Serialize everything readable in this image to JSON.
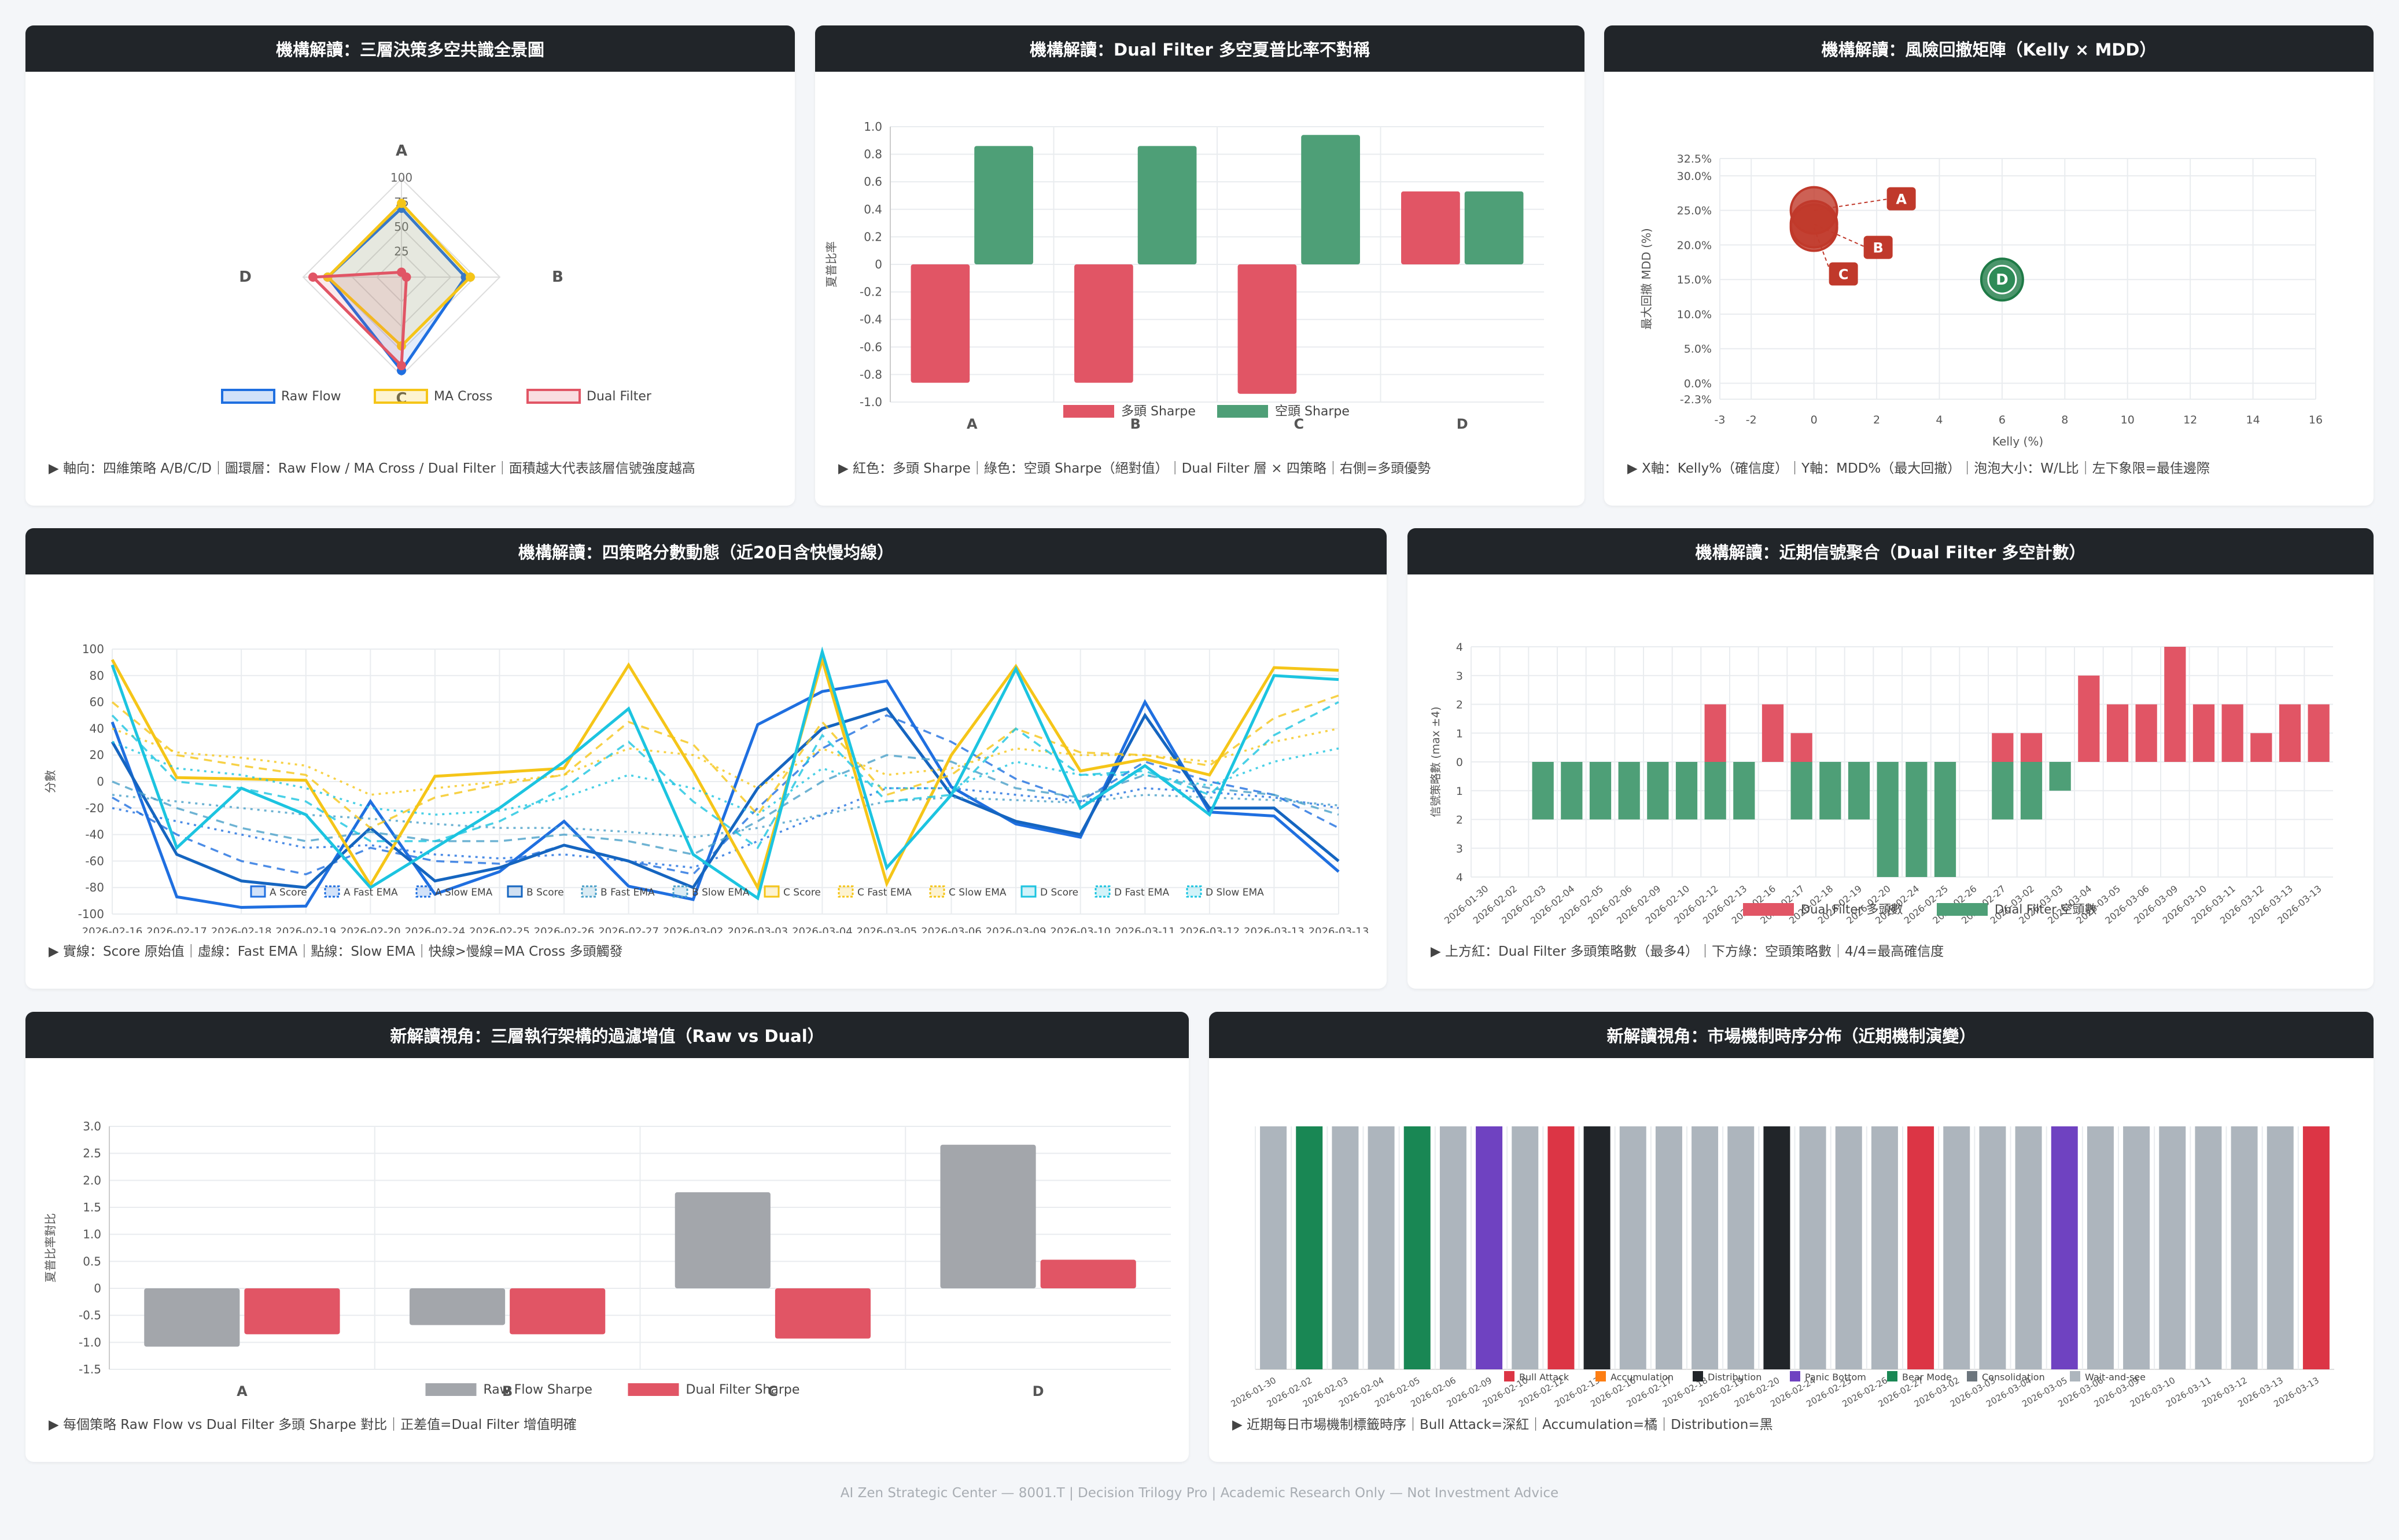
{
  "footer": "AI Zen Strategic Center — 8001.T | Decision Trilogy Pro | Academic Research Only — Not Investment Advice",
  "colors": {
    "red": "#e15565",
    "green": "#4e9f77",
    "gray": "#a3a6ab",
    "blue": "#1f6fe0",
    "yellow": "#f5c518",
    "cyan": "#1cc4e0",
    "dark": "#212529"
  },
  "panels": {
    "radar": {
      "title": "機構解讀：三層決策多空共識全景圖",
      "caption": "▶ 軸向：四維策略 A/B/C/D｜圖環層：Raw Flow / MA Cross / Dual Filter｜面積越大代表該層信號強度越高"
    },
    "sharpe": {
      "title": "機構解讀：Dual Filter 多空夏普比率不對稱",
      "caption": "▶ 紅色：多頭 Sharpe｜綠色：空頭 Sharpe（絕對值）｜Dual Filter 層 × 四策略｜右側=多頭優勢"
    },
    "bubble": {
      "title": "機構解讀：風險回撤矩陣（Kelly × MDD）",
      "caption": "▶ X軸：Kelly%（確信度）｜Y軸：MDD%（最大回撤）｜泡泡大小：W/L比｜左下象限=最佳邊際"
    },
    "lines": {
      "title": "機構解讀：四策略分數動態（近20日含快慢均線）",
      "caption": "▶ 實線：Score 原始值｜虛線：Fast EMA｜點線：Slow EMA｜快線>慢線=MA Cross 多頭觸發"
    },
    "signals": {
      "title": "機構解讀：近期信號聚合（Dual Filter 多空計數）",
      "caption": "▶ 上方紅：Dual Filter 多頭策略數（最多4）｜下方綠：空頭策略數｜4/4=最高確信度"
    },
    "raw": {
      "title": "新解讀視角：三層執行架構的過濾增值（Raw vs Dual）",
      "caption": "▶ 每個策略 Raw Flow vs Dual Filter 多頭 Sharpe 對比｜正差值=Dual Filter 增值明確"
    },
    "regime": {
      "title": "新解讀視角：市場機制時序分佈（近期機制演變）",
      "caption": "▶ 近期每日市場機制標籤時序｜Bull Attack=深紅｜Accumulation=橘｜Distribution=黑"
    }
  },
  "chart_data": [
    {
      "type": "radar",
      "axes": [
        "A",
        "B",
        "C",
        "D"
      ],
      "ticks": [
        "25",
        "50",
        "75",
        "100"
      ],
      "series": [
        {
          "name": "Raw Flow",
          "color": "#1f6fe0",
          "values": [
            70,
            65,
            95,
            75
          ]
        },
        {
          "name": "MA Cross",
          "color": "#f5c518",
          "values": [
            75,
            70,
            70,
            75
          ]
        },
        {
          "name": "Dual Filter",
          "color": "#e15565",
          "values": [
            5,
            5,
            90,
            90
          ]
        }
      ]
    },
    {
      "type": "bar",
      "categories": [
        "A",
        "B",
        "C",
        "D"
      ],
      "ylabel": "夏普比率",
      "ylim": [
        -1.0,
        1.0
      ],
      "yticks": [
        "1.0",
        "0.8",
        "0.6",
        "0.4",
        "0.2",
        "0",
        "-0.2",
        "-0.4",
        "-0.6",
        "-0.8",
        "-1.0"
      ],
      "series": [
        {
          "name": "多頭 Sharpe",
          "color": "#e15565",
          "values": [
            -0.86,
            -0.86,
            -0.94,
            0.53
          ]
        },
        {
          "name": "空頭 Sharpe",
          "color": "#4e9f77",
          "values": [
            0.86,
            0.86,
            0.94,
            0.53
          ]
        }
      ]
    },
    {
      "type": "scatter",
      "xlabel": "Kelly (%)",
      "ylabel": "最大回撤 MDD (%)",
      "xlim": [
        -3,
        16
      ],
      "ylim": [
        -2.3,
        32.5
      ],
      "xticks": [
        "-3",
        "-2",
        "0",
        "2",
        "4",
        "6",
        "8",
        "10",
        "12",
        "14",
        "16"
      ],
      "yticks": [
        "32.5%",
        "30.0%",
        "25.0%",
        "20.0%",
        "15.0%",
        "10.0%",
        "5.0%",
        "0.0%",
        "-2.3%"
      ],
      "points": [
        {
          "label": "A",
          "x": 0,
          "y": 25,
          "color": "#c0392b"
        },
        {
          "label": "B",
          "x": 0,
          "y": 23,
          "color": "#c0392b"
        },
        {
          "label": "C",
          "x": 0,
          "y": 22.5,
          "color": "#c0392b"
        },
        {
          "label": "D",
          "x": 6,
          "y": 15,
          "color": "#1e7a46"
        }
      ]
    },
    {
      "type": "line",
      "ylabel": "分數",
      "ylim": [
        -100,
        100
      ],
      "yticks": [
        "100",
        "80",
        "60",
        "40",
        "20",
        "0",
        "-20",
        "-40",
        "-60",
        "-80",
        "-100"
      ],
      "x": [
        "2026-02-16",
        "2026-02-17",
        "2026-02-18",
        "2026-02-19",
        "2026-02-20",
        "2026-02-24",
        "2026-02-25",
        "2026-02-26",
        "2026-02-27",
        "2026-03-02",
        "2026-03-03",
        "2026-03-04",
        "2026-03-05",
        "2026-03-06",
        "2026-03-09",
        "2026-03-10",
        "2026-03-11",
        "2026-03-12",
        "2026-03-13",
        "2026-03-13"
      ],
      "series": [
        {
          "name": "A Score",
          "color": "#1f6fe0",
          "style": "solid",
          "values": [
            45,
            -87,
            -95,
            -94,
            -15,
            -85,
            -68,
            -30,
            -79,
            -89,
            43,
            68,
            76,
            -4,
            -32,
            -42,
            60,
            -23,
            -26,
            -68
          ]
        },
        {
          "name": "A Fast EMA",
          "color": "#1f6fe0",
          "style": "dash",
          "values": [
            -12,
            -40,
            -60,
            -70,
            -50,
            -60,
            -62,
            -48,
            -60,
            -70,
            -20,
            25,
            50,
            30,
            2,
            -15,
            15,
            0,
            -10,
            -35
          ]
        },
        {
          "name": "A Slow EMA",
          "color": "#1f6fe0",
          "style": "dot",
          "values": [
            -20,
            -30,
            -40,
            -50,
            -48,
            -55,
            -58,
            -55,
            -60,
            -65,
            -45,
            -25,
            -5,
            -5,
            -10,
            -15,
            -5,
            -8,
            -12,
            -20
          ]
        },
        {
          "name": "B Score",
          "color": "#1565c0",
          "style": "solid",
          "values": [
            30,
            -55,
            -75,
            -80,
            -35,
            -75,
            -65,
            -48,
            -60,
            -80,
            -5,
            40,
            55,
            -10,
            -30,
            -40,
            50,
            -20,
            -20,
            -60
          ]
        },
        {
          "name": "B Fast EMA",
          "color": "#4aa0c8",
          "style": "dash",
          "values": [
            0,
            -20,
            -35,
            -45,
            -38,
            -45,
            -45,
            -40,
            -45,
            -55,
            -30,
            0,
            20,
            15,
            -5,
            -12,
            5,
            -5,
            -10,
            -25
          ]
        },
        {
          "name": "B Slow EMA",
          "color": "#4aa0c8",
          "style": "dot",
          "values": [
            -10,
            -15,
            -20,
            -25,
            -28,
            -32,
            -35,
            -35,
            -38,
            -42,
            -35,
            -25,
            -15,
            -12,
            -14,
            -16,
            -10,
            -12,
            -14,
            -18
          ]
        },
        {
          "name": "C Score",
          "color": "#f5c518",
          "style": "solid",
          "values": [
            92,
            3,
            2,
            1,
            -78,
            4,
            7,
            10,
            88,
            8,
            -80,
            92,
            -77,
            20,
            87,
            8,
            17,
            5,
            86,
            84
          ]
        },
        {
          "name": "C Fast EMA",
          "color": "#f5c518",
          "style": "dash",
          "values": [
            60,
            20,
            12,
            5,
            -35,
            -12,
            -2,
            5,
            45,
            28,
            -25,
            45,
            -10,
            5,
            40,
            22,
            20,
            12,
            48,
            65
          ]
        },
        {
          "name": "C Slow EMA",
          "color": "#f5c518",
          "style": "dot",
          "values": [
            40,
            22,
            18,
            12,
            -10,
            -5,
            0,
            5,
            25,
            20,
            -5,
            25,
            5,
            10,
            25,
            20,
            20,
            15,
            30,
            40
          ]
        },
        {
          "name": "D Score",
          "color": "#1cc4e0",
          "style": "solid",
          "values": [
            88,
            -50,
            -5,
            -25,
            -80,
            -50,
            -20,
            15,
            55,
            -55,
            -88,
            98,
            -65,
            -10,
            85,
            -20,
            12,
            -25,
            80,
            77
          ]
        },
        {
          "name": "D Fast EMA",
          "color": "#1cc4e0",
          "style": "dash",
          "values": [
            50,
            0,
            -5,
            -15,
            -45,
            -45,
            -30,
            -5,
            30,
            -15,
            -50,
            35,
            -15,
            -10,
            40,
            5,
            8,
            -10,
            35,
            60
          ]
        },
        {
          "name": "D Slow EMA",
          "color": "#1cc4e0",
          "style": "dot",
          "values": [
            30,
            10,
            5,
            -5,
            -20,
            -25,
            -22,
            -12,
            5,
            -5,
            -25,
            10,
            -5,
            -5,
            15,
            5,
            5,
            -3,
            15,
            25
          ]
        }
      ]
    },
    {
      "type": "bar",
      "ylabel": "信號策略數 (max ±4)",
      "ylim": [
        -4,
        4
      ],
      "yticks": [
        "4",
        "3",
        "2",
        "1",
        "0",
        "1",
        "2",
        "3",
        "4"
      ],
      "categories": [
        "2026-01-30",
        "2026-02-02",
        "2026-02-03",
        "2026-02-04",
        "2026-02-05",
        "2026-02-06",
        "2026-02-09",
        "2026-02-10",
        "2026-02-12",
        "2026-02-13",
        "2026-02-16",
        "2026-02-17",
        "2026-02-18",
        "2026-02-19",
        "2026-02-20",
        "2026-02-24",
        "2026-02-25",
        "2026-02-26",
        "2026-02-27",
        "2026-03-02",
        "2026-03-03",
        "2026-03-04",
        "2026-03-05",
        "2026-03-06",
        "2026-03-09",
        "2026-03-10",
        "2026-03-11",
        "2026-03-12",
        "2026-03-13",
        "2026-03-13"
      ],
      "series": [
        {
          "name": "Dual Filter 多頭數",
          "color": "#e15565",
          "values": [
            0,
            0,
            0,
            0,
            0,
            0,
            0,
            0,
            2,
            0,
            2,
            1,
            0,
            0,
            0,
            0,
            0,
            0,
            1,
            1,
            0,
            3,
            2,
            2,
            4,
            2,
            2,
            1,
            2,
            2
          ]
        },
        {
          "name": "Dual Filter 空頭數",
          "color": "#4e9f77",
          "values": [
            0,
            0,
            -2,
            -2,
            -2,
            -2,
            -2,
            -2,
            -2,
            -2,
            0,
            -2,
            -2,
            -2,
            -4,
            -4,
            -4,
            0,
            -2,
            -2,
            -1,
            0,
            0,
            0,
            0,
            0,
            0,
            0,
            0,
            0
          ]
        }
      ]
    },
    {
      "type": "bar",
      "categories": [
        "A",
        "B",
        "C",
        "D"
      ],
      "ylabel": "夏普比率對比",
      "ylim": [
        -1.5,
        3.0
      ],
      "yticks": [
        "3.0",
        "2.5",
        "2.0",
        "1.5",
        "1.0",
        "0.5",
        "0",
        "-0.5",
        "-1.0",
        "-1.5"
      ],
      "series": [
        {
          "name": "Raw Flow Sharpe",
          "color": "#a3a6ab",
          "values": [
            -1.08,
            -0.68,
            1.78,
            2.66
          ]
        },
        {
          "name": "Dual Filter Sharpe",
          "color": "#e15565",
          "values": [
            -0.85,
            -0.85,
            -0.93,
            0.53
          ]
        }
      ]
    },
    {
      "type": "bar",
      "title": "",
      "legend": [
        {
          "name": "Bull Attack",
          "color": "#dc3545"
        },
        {
          "name": "Accumulation",
          "color": "#fd7e14"
        },
        {
          "name": "Distribution",
          "color": "#212529"
        },
        {
          "name": "Panic Bottom",
          "color": "#6f42c1"
        },
        {
          "name": "Bear Mode",
          "color": "#198754"
        },
        {
          "name": "Consolidation",
          "color": "#6c757d"
        },
        {
          "name": "Wait-and-see",
          "color": "#adb5bd"
        }
      ],
      "categories": [
        "2026-01-30",
        "2026-02-02",
        "2026-02-03",
        "2026-02-04",
        "2026-02-05",
        "2026-02-06",
        "2026-02-09",
        "2026-02-10",
        "2026-02-12",
        "2026-02-13",
        "2026-02-16",
        "2026-02-17",
        "2026-02-18",
        "2026-02-19",
        "2026-02-20",
        "2026-02-24",
        "2026-02-25",
        "2026-02-26",
        "2026-02-27",
        "2026-03-02",
        "2026-03-03",
        "2026-03-04",
        "2026-03-05",
        "2026-03-06",
        "2026-03-09",
        "2026-03-10",
        "2026-03-11",
        "2026-03-12",
        "2026-03-13",
        "2026-03-13"
      ],
      "values": [
        "Wait-and-see",
        "Bear Mode",
        "Wait-and-see",
        "Wait-and-see",
        "Bear Mode",
        "Wait-and-see",
        "Panic Bottom",
        "Wait-and-see",
        "Bull Attack",
        "Distribution",
        "Wait-and-see",
        "Wait-and-see",
        "Wait-and-see",
        "Wait-and-see",
        "Distribution",
        "Wait-and-see",
        "Wait-and-see",
        "Wait-and-see",
        "Bull Attack",
        "Wait-and-see",
        "Wait-and-see",
        "Wait-and-see",
        "Panic Bottom",
        "Wait-and-see",
        "Wait-and-see",
        "Wait-and-see",
        "Wait-and-see",
        "Wait-and-see",
        "Wait-and-see",
        "Bull Attack"
      ]
    }
  ]
}
